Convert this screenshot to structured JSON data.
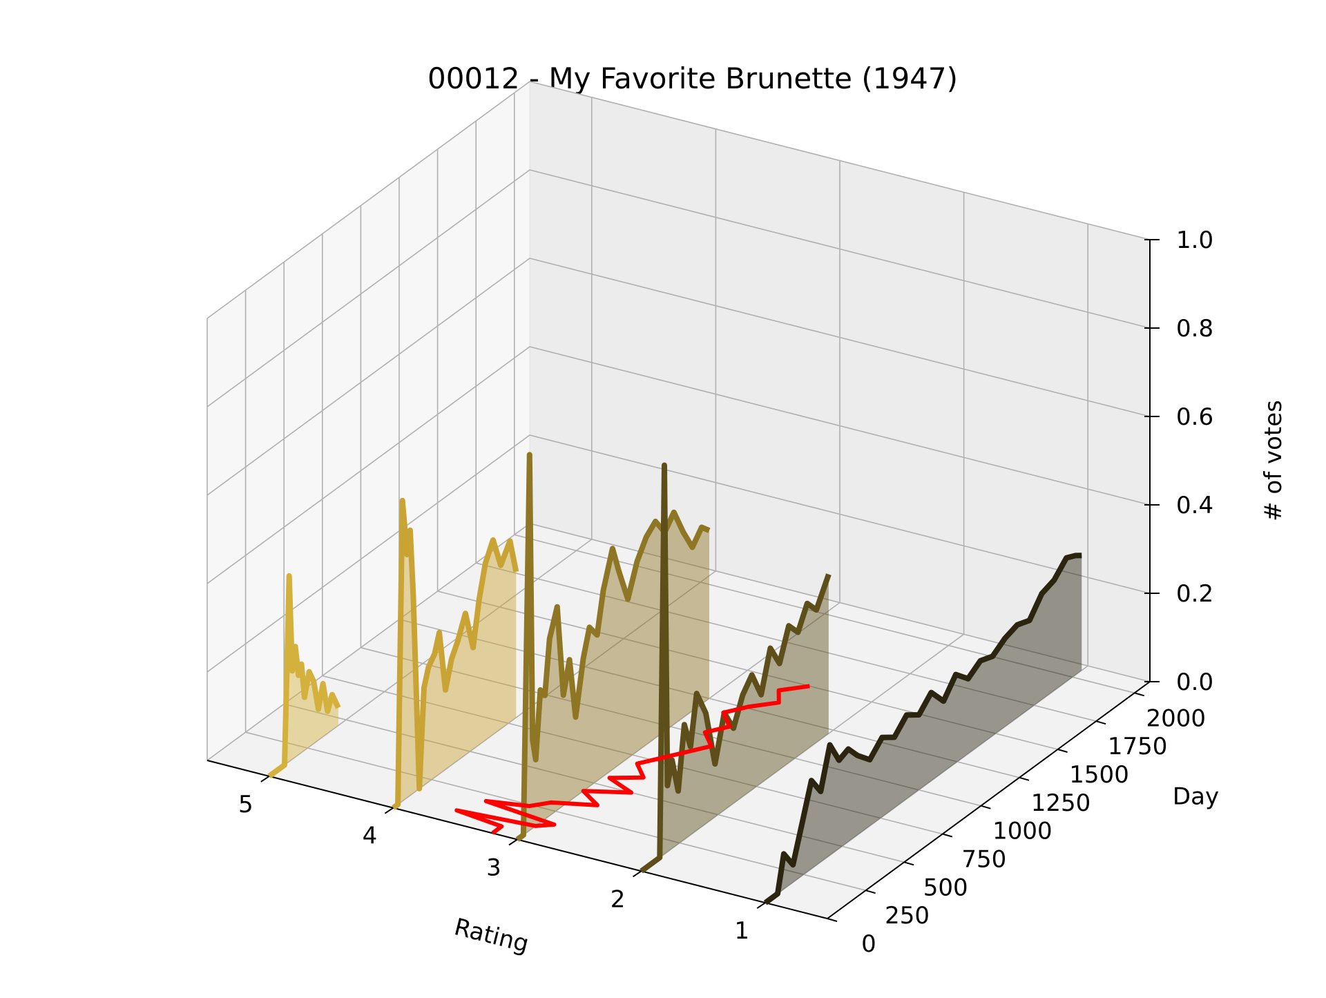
{
  "chart_data": {
    "type": "area",
    "title": "00012 - My Favorite Brunette (1947)",
    "xlabel": "Rating",
    "ylabel": "Day",
    "zlabel": "# of votes",
    "x_ticks": [
      "5",
      "4",
      "3",
      "2",
      "1"
    ],
    "y_ticks": [
      "0",
      "250",
      "500",
      "750",
      "1000",
      "1250",
      "1500",
      "1750",
      "2000"
    ],
    "z_ticks": [
      "0.0",
      "0.2",
      "0.4",
      "0.6",
      "0.8",
      "1.0"
    ],
    "xlim": [
      0.5,
      5.5
    ],
    "ylim": [
      0,
      2100
    ],
    "zlim": [
      0,
      1
    ],
    "grid": true,
    "series": [
      {
        "rating": 5,
        "color": "#d4b13c",
        "points": [
          [
            0,
            0.0
          ],
          [
            100,
            0.0
          ],
          [
            130,
            0.42
          ],
          [
            150,
            0.2
          ],
          [
            170,
            0.25
          ],
          [
            190,
            0.18
          ],
          [
            210,
            0.2
          ],
          [
            230,
            0.12
          ],
          [
            260,
            0.17
          ],
          [
            290,
            0.14
          ],
          [
            320,
            0.07
          ],
          [
            350,
            0.12
          ],
          [
            380,
            0.05
          ],
          [
            410,
            0.08
          ],
          [
            450,
            0.04
          ]
        ]
      },
      {
        "rating": 4,
        "color": "#c9a333",
        "points": [
          [
            0,
            0.0
          ],
          [
            30,
            0.0
          ],
          [
            60,
            0.68
          ],
          [
            90,
            0.55
          ],
          [
            110,
            0.6
          ],
          [
            130,
            0.45
          ],
          [
            170,
            0.0
          ],
          [
            200,
            0.22
          ],
          [
            230,
            0.26
          ],
          [
            270,
            0.28
          ],
          [
            300,
            0.32
          ],
          [
            340,
            0.18
          ],
          [
            380,
            0.24
          ],
          [
            420,
            0.27
          ],
          [
            470,
            0.32
          ],
          [
            520,
            0.23
          ],
          [
            560,
            0.33
          ],
          [
            600,
            0.4
          ],
          [
            650,
            0.44
          ],
          [
            700,
            0.37
          ],
          [
            760,
            0.41
          ],
          [
            800,
            0.33
          ]
        ]
      },
      {
        "rating": 3,
        "color": "#8f7624",
        "points": [
          [
            0,
            0.0
          ],
          [
            40,
            0.0
          ],
          [
            80,
            0.85
          ],
          [
            100,
            0.2
          ],
          [
            120,
            0.15
          ],
          [
            150,
            0.3
          ],
          [
            180,
            0.28
          ],
          [
            210,
            0.4
          ],
          [
            260,
            0.46
          ],
          [
            300,
            0.25
          ],
          [
            340,
            0.32
          ],
          [
            380,
            0.18
          ],
          [
            430,
            0.3
          ],
          [
            470,
            0.36
          ],
          [
            520,
            0.33
          ],
          [
            560,
            0.42
          ],
          [
            620,
            0.5
          ],
          [
            660,
            0.44
          ],
          [
            720,
            0.36
          ],
          [
            780,
            0.43
          ],
          [
            840,
            0.47
          ],
          [
            900,
            0.49
          ],
          [
            960,
            0.45
          ],
          [
            1020,
            0.48
          ],
          [
            1080,
            0.42
          ],
          [
            1140,
            0.37
          ],
          [
            1200,
            0.4
          ],
          [
            1250,
            0.38
          ]
        ]
      },
      {
        "rating": 2,
        "color": "#5e4e19",
        "points": [
          [
            0,
            0.0
          ],
          [
            120,
            0.0
          ],
          [
            150,
            0.88
          ],
          [
            170,
            0.15
          ],
          [
            200,
            0.2
          ],
          [
            240,
            0.12
          ],
          [
            280,
            0.26
          ],
          [
            320,
            0.2
          ],
          [
            360,
            0.31
          ],
          [
            420,
            0.25
          ],
          [
            480,
            0.12
          ],
          [
            540,
            0.22
          ],
          [
            600,
            0.17
          ],
          [
            660,
            0.23
          ],
          [
            720,
            0.26
          ],
          [
            780,
            0.2
          ],
          [
            840,
            0.29
          ],
          [
            900,
            0.24
          ],
          [
            960,
            0.31
          ],
          [
            1020,
            0.28
          ],
          [
            1080,
            0.33
          ],
          [
            1140,
            0.3
          ],
          [
            1220,
            0.36
          ]
        ]
      },
      {
        "rating": 1,
        "color": "#2b2510",
        "points": [
          [
            0,
            0.0
          ],
          [
            80,
            0.0
          ],
          [
            120,
            0.08
          ],
          [
            180,
            0.04
          ],
          [
            240,
            0.12
          ],
          [
            300,
            0.2
          ],
          [
            360,
            0.16
          ],
          [
            420,
            0.25
          ],
          [
            480,
            0.2
          ],
          [
            540,
            0.21
          ],
          [
            600,
            0.18
          ],
          [
            680,
            0.15
          ],
          [
            760,
            0.18
          ],
          [
            840,
            0.16
          ],
          [
            920,
            0.19
          ],
          [
            1000,
            0.17
          ],
          [
            1080,
            0.2
          ],
          [
            1160,
            0.16
          ],
          [
            1240,
            0.2
          ],
          [
            1320,
            0.17
          ],
          [
            1400,
            0.19
          ],
          [
            1480,
            0.18
          ],
          [
            1560,
            0.2
          ],
          [
            1640,
            0.21
          ],
          [
            1720,
            0.2
          ],
          [
            1800,
            0.24
          ],
          [
            1880,
            0.25
          ],
          [
            1960,
            0.28
          ],
          [
            2020,
            0.27
          ],
          [
            2060,
            0.26
          ]
        ]
      }
    ],
    "mean_rating_line": {
      "color": "#ff0000",
      "points": [
        [
          0,
          3.2
        ],
        [
          60,
          3.2
        ],
        [
          90,
          3.6
        ],
        [
          120,
          3.0
        ],
        [
          160,
          2.9
        ],
        [
          200,
          3.5
        ],
        [
          240,
          3.2
        ],
        [
          300,
          3.1
        ],
        [
          360,
          2.8
        ],
        [
          430,
          3.0
        ],
        [
          500,
          2.7
        ],
        [
          560,
          2.95
        ],
        [
          620,
          2.75
        ],
        [
          700,
          2.9
        ],
        [
          780,
          2.8
        ],
        [
          860,
          2.7
        ],
        [
          940,
          2.6
        ],
        [
          1020,
          2.75
        ],
        [
          1100,
          2.65
        ],
        [
          1180,
          2.8
        ],
        [
          1260,
          2.7
        ],
        [
          1340,
          2.55
        ],
        [
          1420,
          2.65
        ],
        [
          1500,
          2.5
        ]
      ]
    }
  }
}
